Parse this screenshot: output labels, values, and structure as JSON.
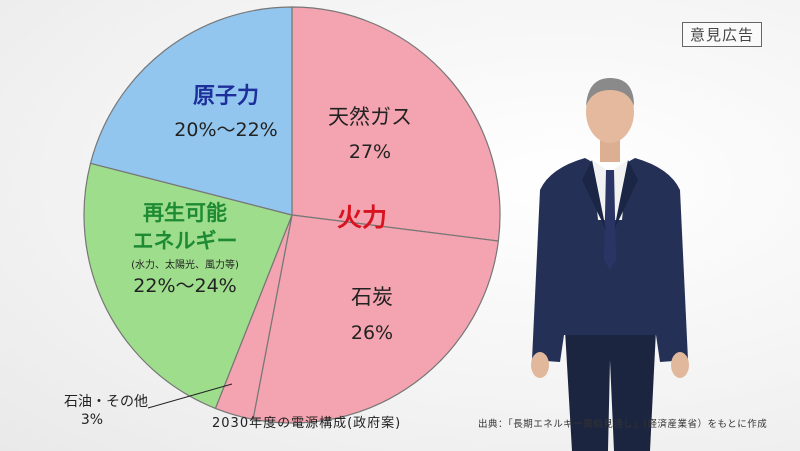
{
  "ad_badge": "意見広告",
  "caption": "2030年度の電源構成(政府案)",
  "source": "出典：「長期エネルギー需給見通し」(経済産業省）をもとに作成",
  "colors": {
    "nuclear": "#93c6ee",
    "renewable": "#9edd8c",
    "fossil": "#f3a4b0",
    "oil": "#f3a4b0",
    "nuclear_text": "#1d2f9a",
    "renewable_text": "#1e8a33",
    "fossil_text": "#d8121f"
  },
  "chart_data": {
    "type": "pie",
    "title": "",
    "group_label": "火力",
    "slices": [
      {
        "name": "天然ガス",
        "value": 27,
        "label": "27%"
      },
      {
        "name": "石炭",
        "value": 26,
        "label": "26%"
      },
      {
        "name": "石油・その他",
        "value": 3,
        "label": "3%"
      },
      {
        "name": "再生可能エネルギー",
        "name_line1": "再生可能",
        "name_line2": "エネルギー",
        "note": "(水力、太陽光、風力等)",
        "value": 23,
        "label": "22%〜24%"
      },
      {
        "name": "原子力",
        "value": 21,
        "label": "20%〜22%"
      }
    ]
  }
}
